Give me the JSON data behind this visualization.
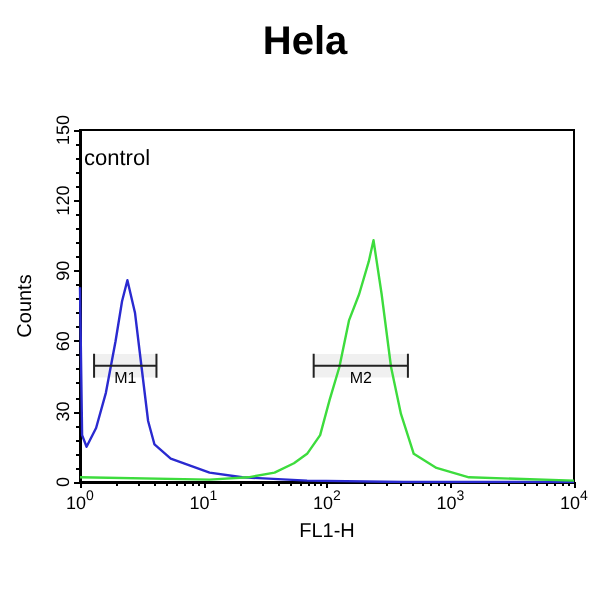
{
  "chart_data": {
    "type": "line",
    "title": "Hela",
    "xlabel": "FL1-H",
    "ylabel": "Counts",
    "annotations": [
      "control"
    ],
    "log": "x",
    "grid": false,
    "marker": "none",
    "line_style": "solid",
    "xlim": [
      1,
      10000
    ],
    "xticks": [
      {
        "value": 1,
        "label": "10$^{0}$"
      },
      {
        "value": 10,
        "label": "10$^{1}$"
      },
      {
        "value": 100,
        "label": "10$^{2}$"
      },
      {
        "value": 1000,
        "label": "10$^{3}$"
      },
      {
        "value": 10000,
        "label": "10$^{4}$"
      }
    ],
    "ylim": [
      0,
      150
    ],
    "yticks": [
      0,
      30,
      60,
      90,
      120,
      150
    ],
    "bands": [
      {
        "axis": "x",
        "from": 1.3,
        "to": 4.16,
        "label": "M1"
      },
      {
        "axis": "x",
        "from": 78,
        "to": 452,
        "label": "M2"
      }
    ],
    "series": [
      {
        "color": "#2a2ad0",
        "x": [
          1,
          1.04,
          1.13,
          1.35,
          1.62,
          1.94,
          2.19,
          2.42,
          2.79,
          3.15,
          3.56,
          4.01,
          5.43,
          7.8,
          11.2,
          20.6,
          69,
          420,
          10000
        ],
        "values": [
          83,
          20,
          15,
          23,
          38,
          60,
          77,
          86,
          72,
          49,
          26,
          16,
          10,
          7,
          4,
          2,
          0.6,
          0,
          0
        ]
      },
      {
        "color": "#3ddc3d",
        "x": [
          1,
          11.2,
          23,
          37.6,
          54,
          69,
          88,
          105,
          126,
          151,
          182,
          218,
          238,
          277,
          330,
          397,
          504,
          770,
          1410,
          10000
        ],
        "values": [
          2,
          1,
          2,
          4,
          8,
          12,
          20,
          35,
          49,
          69,
          80,
          94,
          103,
          80,
          49,
          29,
          12,
          6,
          2,
          0.6
        ]
      }
    ]
  }
}
